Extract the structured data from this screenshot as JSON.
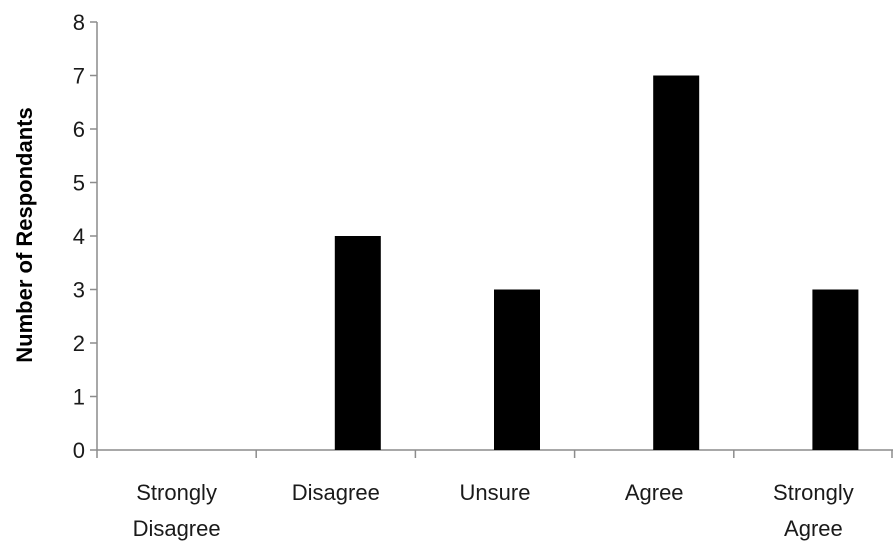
{
  "chart_data": {
    "type": "bar",
    "categories": [
      [
        "Strongly",
        "Disagree"
      ],
      [
        "Disagree"
      ],
      [
        "Unsure"
      ],
      [
        "Agree"
      ],
      [
        "Strongly",
        "Agree"
      ]
    ],
    "values": [
      0,
      4,
      3,
      7,
      3
    ],
    "ylabel": "Number of Respondants",
    "xlabel": "",
    "ylim": [
      0,
      8
    ],
    "yticks": [
      0,
      1,
      2,
      3,
      4,
      5,
      6,
      7,
      8
    ],
    "grid": false,
    "legend": "none",
    "bar_color": "#000000",
    "axis_color": "#8c8c8c"
  }
}
